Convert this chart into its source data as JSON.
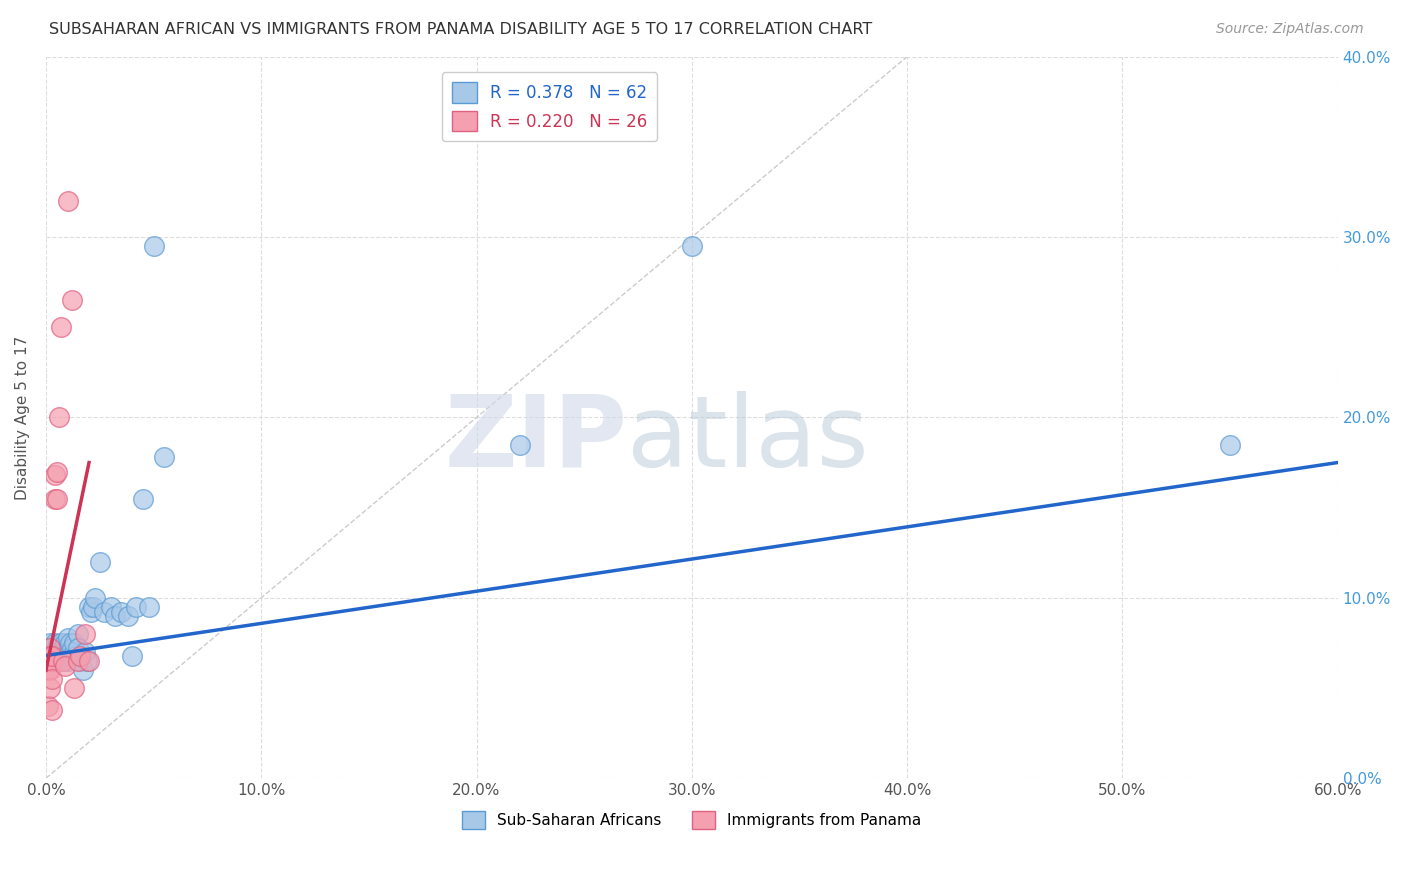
{
  "title": "SUBSAHARAN AFRICAN VS IMMIGRANTS FROM PANAMA DISABILITY AGE 5 TO 17 CORRELATION CHART",
  "source": "Source: ZipAtlas.com",
  "ylabel": "Disability Age 5 to 17",
  "xlim": [
    0,
    0.6
  ],
  "ylim": [
    0,
    0.4
  ],
  "xticks": [
    0.0,
    0.1,
    0.2,
    0.3,
    0.4,
    0.5,
    0.6
  ],
  "yticks": [
    0.0,
    0.1,
    0.2,
    0.3,
    0.4
  ],
  "blue_label": "Sub-Saharan Africans",
  "pink_label": "Immigrants from Panama",
  "blue_R": 0.378,
  "blue_N": 62,
  "pink_R": 0.22,
  "pink_N": 26,
  "blue_color": "#a8c8e8",
  "blue_edge": "#5b9bd5",
  "pink_color": "#f4a0b0",
  "pink_edge": "#e06080",
  "trend_blue": "#2266cc",
  "trend_pink": "#cc3355",
  "ref_line_color": "#cccccc",
  "background": "#ffffff",
  "grid_color": "#dddddd",
  "watermark_zip": "ZIP",
  "watermark_atlas": "atlas",
  "blue_scatter_x": [
    0.001,
    0.002,
    0.002,
    0.002,
    0.003,
    0.003,
    0.003,
    0.003,
    0.004,
    0.004,
    0.004,
    0.004,
    0.005,
    0.005,
    0.005,
    0.005,
    0.006,
    0.006,
    0.006,
    0.007,
    0.007,
    0.007,
    0.008,
    0.008,
    0.008,
    0.009,
    0.009,
    0.01,
    0.01,
    0.01,
    0.011,
    0.011,
    0.012,
    0.012,
    0.013,
    0.013,
    0.014,
    0.015,
    0.015,
    0.016,
    0.017,
    0.018,
    0.019,
    0.02,
    0.021,
    0.022,
    0.023,
    0.025,
    0.027,
    0.03,
    0.032,
    0.035,
    0.038,
    0.04,
    0.042,
    0.045,
    0.048,
    0.05,
    0.055,
    0.22,
    0.3,
    0.55
  ],
  "blue_scatter_y": [
    0.07,
    0.072,
    0.068,
    0.075,
    0.065,
    0.07,
    0.073,
    0.068,
    0.072,
    0.07,
    0.075,
    0.068,
    0.072,
    0.07,
    0.073,
    0.068,
    0.07,
    0.065,
    0.072,
    0.068,
    0.075,
    0.07,
    0.072,
    0.068,
    0.07,
    0.075,
    0.068,
    0.072,
    0.065,
    0.078,
    0.07,
    0.075,
    0.068,
    0.072,
    0.07,
    0.075,
    0.068,
    0.08,
    0.072,
    0.065,
    0.06,
    0.07,
    0.065,
    0.095,
    0.092,
    0.095,
    0.1,
    0.12,
    0.092,
    0.095,
    0.09,
    0.092,
    0.09,
    0.068,
    0.095,
    0.155,
    0.095,
    0.295,
    0.178,
    0.185,
    0.295,
    0.185
  ],
  "pink_scatter_x": [
    0.001,
    0.001,
    0.001,
    0.002,
    0.002,
    0.002,
    0.002,
    0.003,
    0.003,
    0.003,
    0.003,
    0.004,
    0.004,
    0.005,
    0.005,
    0.006,
    0.007,
    0.008,
    0.009,
    0.01,
    0.012,
    0.013,
    0.015,
    0.016,
    0.018,
    0.02
  ],
  "pink_scatter_y": [
    0.068,
    0.06,
    0.04,
    0.072,
    0.068,
    0.06,
    0.05,
    0.065,
    0.055,
    0.068,
    0.038,
    0.168,
    0.155,
    0.17,
    0.155,
    0.2,
    0.25,
    0.065,
    0.062,
    0.32,
    0.265,
    0.05,
    0.065,
    0.068,
    0.08,
    0.065
  ],
  "blue_trend_x0": 0.0,
  "blue_trend_x1": 0.6,
  "blue_trend_y0": 0.068,
  "blue_trend_y1": 0.175,
  "pink_trend_x0": 0.0,
  "pink_trend_x1": 0.02,
  "pink_trend_y0": 0.06,
  "pink_trend_y1": 0.175
}
